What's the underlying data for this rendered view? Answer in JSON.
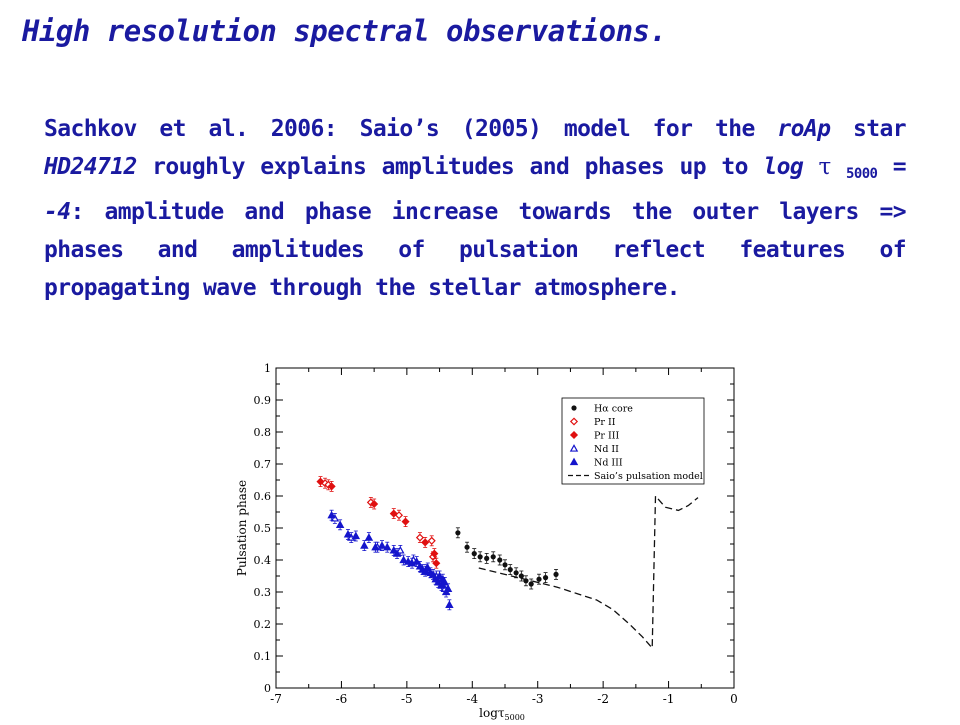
{
  "title": "High resolution spectral observations.",
  "body": {
    "t1": "Sachkov et al. 2006: Saio’s (2005) model for the ",
    "t2": "roAp",
    "t3": " star ",
    "t4": "HD24712",
    "t5": " roughly explains amplitudes and phases up to ",
    "t6": "log ",
    "t7": "τ",
    "t8": "5000",
    "t9": " = -4",
    "t10": ": amplitude and phase increase towards the outer layers => phases and amplitudes of pulsation reflect features of propagating wave through the stellar atmosphere."
  },
  "chart_data": {
    "type": "scatter",
    "xlabel": "logτ",
    "xlabel_sub": "5000",
    "ylabel": "Pulsation phase",
    "xlim": [
      -7,
      0
    ],
    "ylim": [
      0,
      1
    ],
    "xticks": [
      "-7",
      "-6",
      "-5",
      "-4",
      "-3",
      "-2",
      "-1",
      "0"
    ],
    "yticks": [
      "0",
      "0.1",
      "0.2",
      "0.3",
      "0.4",
      "0.5",
      "0.6",
      "0.7",
      "0.8",
      "0.9",
      "1"
    ],
    "legend_position": "top-right",
    "series": [
      {
        "name": "Hα core",
        "marker": "dot",
        "color": "#111111",
        "points": [
          [
            -4.22,
            0.485
          ],
          [
            -4.08,
            0.44
          ],
          [
            -3.97,
            0.42
          ],
          [
            -3.88,
            0.41
          ],
          [
            -3.78,
            0.405
          ],
          [
            -3.68,
            0.41
          ],
          [
            -3.58,
            0.4
          ],
          [
            -3.5,
            0.385
          ],
          [
            -3.42,
            0.37
          ],
          [
            -3.33,
            0.36
          ],
          [
            -3.25,
            0.35
          ],
          [
            -3.18,
            0.335
          ],
          [
            -3.1,
            0.325
          ],
          [
            -2.98,
            0.34
          ],
          [
            -2.88,
            0.345
          ],
          [
            -2.72,
            0.355
          ]
        ]
      },
      {
        "name": "Pr II",
        "marker": "diamond-open",
        "color": "#e01010",
        "points": [
          [
            -6.25,
            0.64
          ],
          [
            -6.2,
            0.635
          ],
          [
            -5.55,
            0.58
          ],
          [
            -5.12,
            0.54
          ],
          [
            -4.8,
            0.47
          ],
          [
            -4.62,
            0.46
          ],
          [
            -4.6,
            0.41
          ]
        ]
      },
      {
        "name": "Pr III",
        "marker": "diamond",
        "color": "#e01010",
        "points": [
          [
            -6.32,
            0.645
          ],
          [
            -6.15,
            0.63
          ],
          [
            -5.5,
            0.575
          ],
          [
            -5.2,
            0.545
          ],
          [
            -5.02,
            0.52
          ],
          [
            -4.72,
            0.455
          ],
          [
            -4.58,
            0.42
          ],
          [
            -4.55,
            0.39
          ]
        ]
      },
      {
        "name": "Nd II",
        "marker": "triangle-open",
        "color": "#1515cc",
        "points": [
          [
            -6.1,
            0.53
          ],
          [
            -5.85,
            0.47
          ],
          [
            -5.45,
            0.44
          ],
          [
            -5.1,
            0.43
          ],
          [
            -4.9,
            0.4
          ],
          [
            -4.7,
            0.37
          ],
          [
            -4.55,
            0.35
          ],
          [
            -4.48,
            0.33
          ],
          [
            -4.42,
            0.31
          ]
        ]
      },
      {
        "name": "Nd III",
        "marker": "triangle",
        "color": "#1515cc",
        "points": [
          [
            -6.15,
            0.54
          ],
          [
            -6.02,
            0.51
          ],
          [
            -5.9,
            0.48
          ],
          [
            -5.78,
            0.475
          ],
          [
            -5.65,
            0.445
          ],
          [
            -5.58,
            0.47
          ],
          [
            -5.48,
            0.44
          ],
          [
            -5.38,
            0.445
          ],
          [
            -5.3,
            0.44
          ],
          [
            -5.2,
            0.43
          ],
          [
            -5.15,
            0.42
          ],
          [
            -5.05,
            0.4
          ],
          [
            -4.98,
            0.395
          ],
          [
            -4.92,
            0.39
          ],
          [
            -4.85,
            0.395
          ],
          [
            -4.8,
            0.38
          ],
          [
            -4.76,
            0.37
          ],
          [
            -4.72,
            0.365
          ],
          [
            -4.68,
            0.375
          ],
          [
            -4.64,
            0.36
          ],
          [
            -4.6,
            0.355
          ],
          [
            -4.56,
            0.34
          ],
          [
            -4.52,
            0.33
          ],
          [
            -4.5,
            0.35
          ],
          [
            -4.47,
            0.32
          ],
          [
            -4.45,
            0.34
          ],
          [
            -4.42,
            0.33
          ],
          [
            -4.4,
            0.3
          ],
          [
            -4.37,
            0.31
          ],
          [
            -4.35,
            0.26
          ]
        ]
      },
      {
        "name": "Saio’s pulsation model",
        "marker": "dashed-line",
        "color": "#111111",
        "points": [
          [
            -3.9,
            0.375
          ],
          [
            -3.6,
            0.36
          ],
          [
            -3.3,
            0.345
          ],
          [
            -3.0,
            0.33
          ],
          [
            -2.7,
            0.315
          ],
          [
            -2.4,
            0.295
          ],
          [
            -2.1,
            0.275
          ],
          [
            -1.85,
            0.245
          ],
          [
            -1.6,
            0.2
          ],
          [
            -1.4,
            0.16
          ],
          [
            -1.25,
            0.125
          ],
          [
            -1.2,
            0.6
          ],
          [
            -1.05,
            0.565
          ],
          [
            -0.85,
            0.555
          ],
          [
            -0.7,
            0.57
          ],
          [
            -0.55,
            0.595
          ]
        ]
      }
    ]
  }
}
